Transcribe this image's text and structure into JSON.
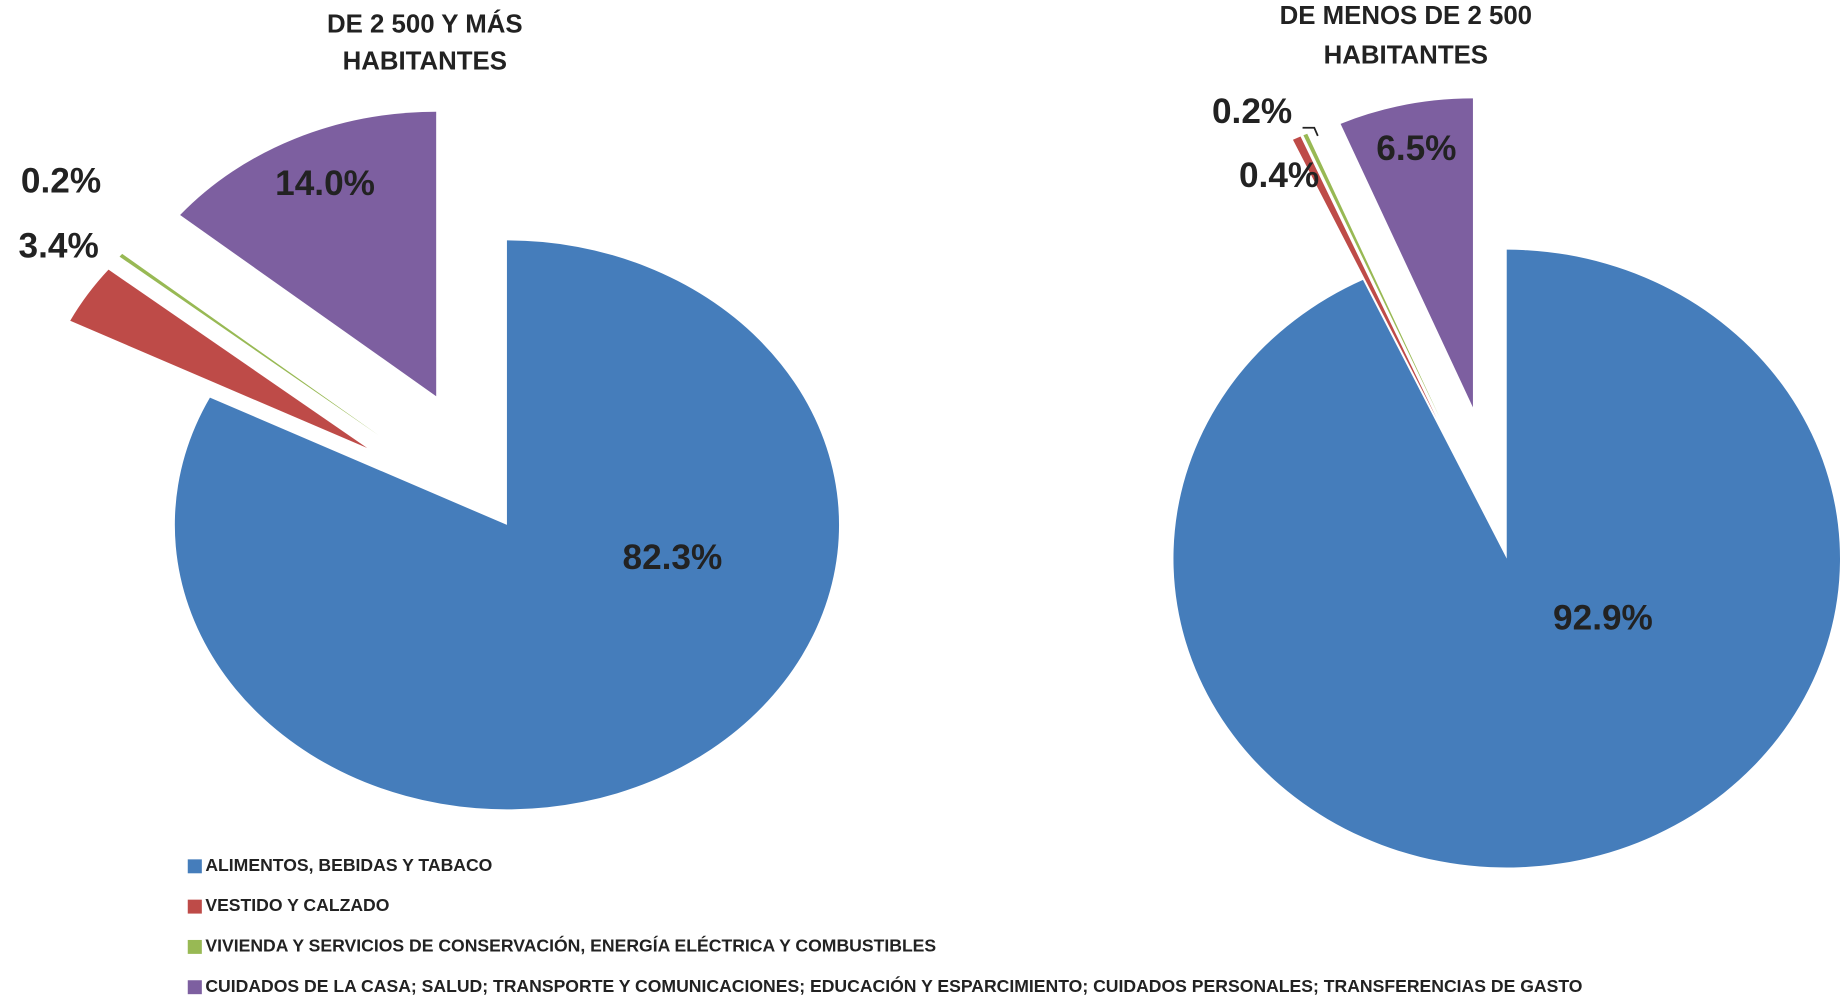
{
  "chart_data": [
    {
      "type": "pie",
      "title": [
        "DE 2 500 Y MÁS",
        "HABITANTES"
      ],
      "values": [
        82.3,
        3.4,
        0.2,
        14.0
      ],
      "value_labels": [
        "82.3%",
        "3.4%",
        "0.2%",
        "14.0%"
      ],
      "colors": [
        "#457dbb",
        "#be4b48",
        "#98b954",
        "#7d5fa0"
      ],
      "exploded": [
        false,
        true,
        true,
        true
      ]
    },
    {
      "type": "pie",
      "title": [
        "DE MENOS DE 2 500",
        "HABITANTES"
      ],
      "values": [
        92.9,
        0.4,
        0.2,
        6.5
      ],
      "value_labels": [
        "92.9%",
        "0.4%",
        "0.2%",
        "6.5%"
      ],
      "colors": [
        "#457dbb",
        "#be4b48",
        "#98b954",
        "#7d5fa0"
      ],
      "exploded": [
        false,
        true,
        true,
        true
      ]
    }
  ],
  "legend": {
    "labels": [
      "ALIMENTOS, BEBIDAS Y TABACO",
      "VESTIDO Y CALZADO",
      "VIVIENDA Y SERVICIOS DE CONSERVACIÓN, ENERGÍA ELÉCTRICA Y COMBUSTIBLES",
      "CUIDADOS DE LA CASA;  SALUD; TRANSPORTE Y COMUNICACIONES;  EDUCACIÓN Y ESPARCIMIENTO; CUIDADOS PERSONALES; TRANSFERENCIAS DE GASTO"
    ],
    "colors": [
      "#457dbb",
      "#be4b48",
      "#98b954",
      "#7d5fa0"
    ]
  }
}
